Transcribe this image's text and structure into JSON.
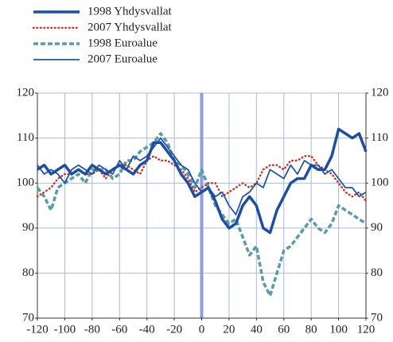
{
  "chart_data": {
    "type": "line",
    "x": [
      -120,
      -115,
      -110,
      -105,
      -100,
      -95,
      -90,
      -85,
      -80,
      -75,
      -70,
      -65,
      -60,
      -55,
      -50,
      -45,
      -40,
      -35,
      -30,
      -25,
      -20,
      -15,
      -10,
      -5,
      0,
      5,
      10,
      15,
      20,
      25,
      30,
      35,
      40,
      45,
      50,
      55,
      60,
      65,
      70,
      75,
      80,
      85,
      90,
      95,
      100,
      105,
      110,
      115,
      120
    ],
    "series": [
      {
        "name": "1998 Yhdysvallat",
        "color": "#1f4e9c",
        "line_style": "thick",
        "values": [
          103,
          104,
          102,
          103,
          104,
          102,
          103,
          102,
          104,
          103,
          102,
          103,
          104,
          103,
          102,
          104,
          105,
          109,
          109,
          107,
          105,
          102,
          100,
          97,
          98,
          99,
          96,
          92,
          90,
          91,
          95,
          97,
          95,
          90,
          89,
          94,
          97,
          100,
          101,
          101,
          104,
          103,
          103,
          106,
          112,
          111,
          110,
          111,
          107
        ]
      },
      {
        "name": "2007 Yhdysvallat",
        "color": "#c0392b",
        "line_style": "dotted",
        "values": [
          97,
          98,
          99,
          101,
          102,
          102,
          103,
          102,
          102,
          103,
          101,
          103,
          104,
          104,
          103,
          102,
          105,
          106,
          105,
          105,
          104,
          103,
          101,
          98,
          99,
          100,
          100,
          97,
          98,
          99,
          100,
          99,
          100,
          103,
          104,
          104,
          103,
          105,
          105,
          106,
          106,
          104,
          103,
          102,
          100,
          98,
          97,
          98,
          96
        ]
      },
      {
        "name": "1998 Euroalue",
        "color": "#5b9aa8",
        "line_style": "dashed",
        "values": [
          99,
          97,
          94,
          99,
          100,
          101,
          102,
          100,
          103,
          103,
          103,
          101,
          102,
          105,
          105,
          107,
          108,
          109,
          111,
          109,
          105,
          104,
          102,
          99,
          103,
          99,
          95,
          93,
          91,
          92,
          88,
          84,
          86,
          78,
          75,
          80,
          85,
          86,
          88,
          90,
          92,
          90,
          89,
          91,
          95,
          94,
          93,
          92,
          91
        ]
      },
      {
        "name": "2007 Euroalue",
        "color": "#2255a4",
        "line_style": "thin",
        "values": [
          104,
          102,
          103,
          102,
          100,
          103,
          104,
          103,
          102,
          104,
          103,
          102,
          105,
          103,
          106,
          105,
          106,
          108,
          110,
          108,
          106,
          104,
          103,
          100,
          98,
          99,
          97,
          98,
          95,
          93,
          97,
          98,
          100,
          99,
          103,
          102,
          101,
          104,
          102,
          105,
          104,
          104,
          102,
          103,
          101,
          99,
          99,
          97,
          98
        ]
      }
    ],
    "xlim": [
      -120,
      120
    ],
    "xticks": [
      -120,
      -100,
      -80,
      -60,
      -40,
      -20,
      0,
      20,
      40,
      60,
      80,
      100,
      120
    ],
    "ylim": [
      70,
      120
    ],
    "yticks": [
      70,
      80,
      90,
      100,
      110,
      120
    ],
    "y2lim": [
      70,
      120
    ],
    "y2ticks": [
      70,
      80,
      90,
      100,
      110,
      120
    ],
    "vline": 0,
    "grid": true,
    "legend": "top-left"
  }
}
